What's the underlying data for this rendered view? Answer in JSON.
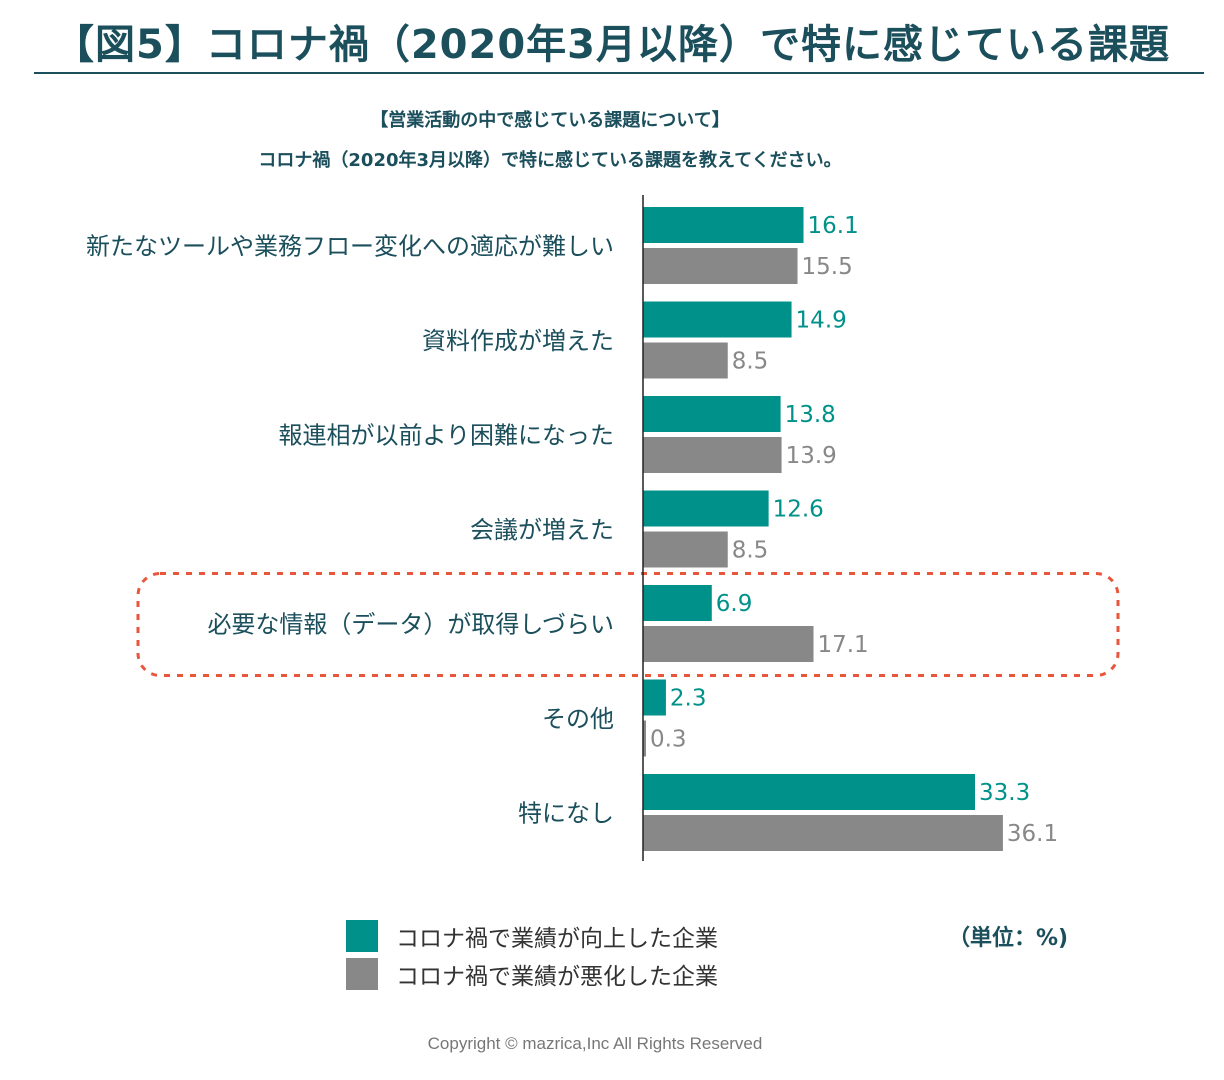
{
  "title": "【図5】コロナ禍（2020年3月以降）で特に感じている課題",
  "subtitle_1": "【営業活動の中で感じている課題について】",
  "subtitle_2": "コロナ禍（2020年3月以降）で特に感じている課題を教えてください。",
  "unit_label": "（単位：%)",
  "copyright": "Copyright © mazrica,Inc All Rights Reserved",
  "chart_data": {
    "type": "bar",
    "orientation": "horizontal",
    "categories": [
      "新たなツールや業務フロー変化への適応が難しい",
      "資料作成が増えた",
      "報連相が以前より困難になった",
      "会議が増えた",
      "必要な情報（データ）が取得しづらい",
      "その他",
      "特になし"
    ],
    "series": [
      {
        "name": "コロナ禍で業績が向上した企業",
        "color": "#00918a",
        "values": [
          16.1,
          14.9,
          13.8,
          12.6,
          6.9,
          2.3,
          33.3
        ],
        "labels": [
          "16.1",
          "14.9",
          "13.8",
          "12.6",
          "6.9",
          "2.3",
          "33.3"
        ]
      },
      {
        "name": "コロナ禍で業績が悪化した企業",
        "color": "#888888",
        "values": [
          15.5,
          8.5,
          13.9,
          8.5,
          17.1,
          0.3,
          36.1
        ],
        "labels": [
          "15.5",
          "8.5",
          "13.9",
          "8.5",
          "17.1",
          "0.3",
          "36.1"
        ]
      }
    ],
    "highlighted_category": "必要な情報（データ）が取得しづらい",
    "highlight_color": "#e8573c",
    "legend_position": "bottom-left",
    "grid": false
  }
}
